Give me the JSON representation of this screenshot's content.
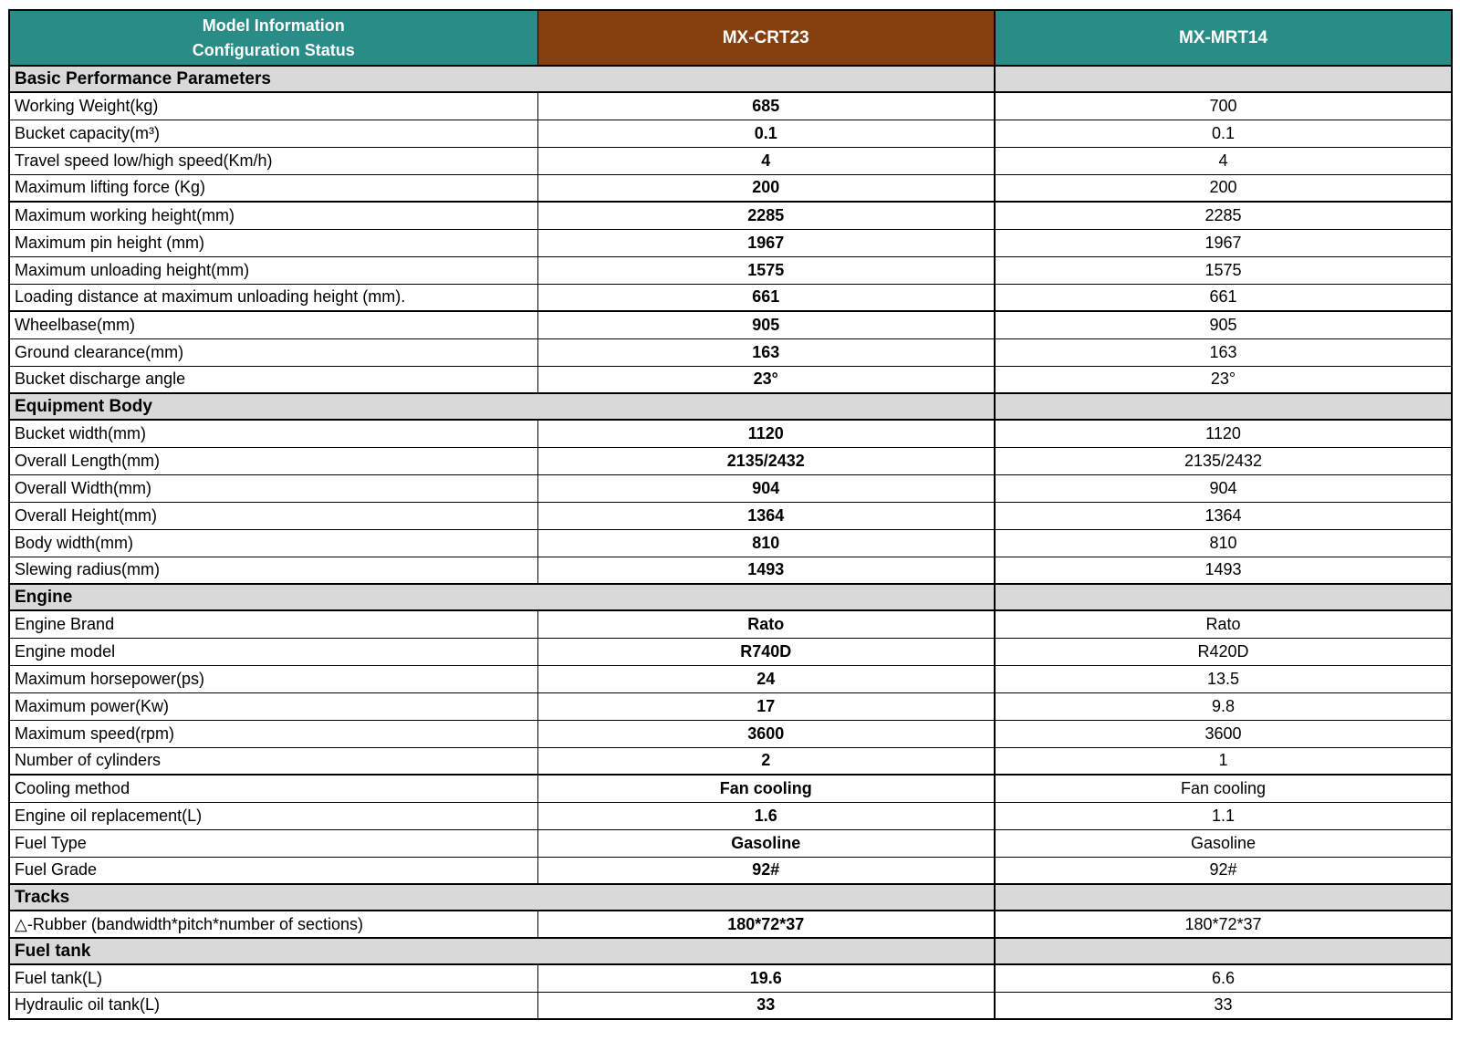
{
  "header": {
    "model_col_line1": "Model Information",
    "model_col_line2": "Configuration Status",
    "crt23_col": "MX-CRT23",
    "mrt14_col": "MX-MRT14"
  },
  "colors": {
    "teal": "#2a8c87",
    "brown": "#86400f",
    "section_bg": "#d9d9d9",
    "value_red": "#ff0000",
    "border": "#000000"
  },
  "sections": [
    {
      "title": "Basic Performance Parameters",
      "rows": [
        {
          "label": "Working Weight(kg)",
          "crt23": "685",
          "mrt14": "700"
        },
        {
          "label": "Bucket capacity(m³)",
          "crt23": "0.1",
          "mrt14": "0.1"
        },
        {
          "label": "Travel speed low/high speed(Km/h)",
          "crt23": "4",
          "mrt14": "4"
        },
        {
          "label": "Maximum lifting force (Kg)",
          "crt23": "200",
          "mrt14": "200",
          "group_end": true
        },
        {
          "label": "Maximum working height(mm)",
          "crt23": "2285",
          "mrt14": "2285"
        },
        {
          "label": "Maximum pin height (mm)",
          "crt23": "1967",
          "mrt14": "1967"
        },
        {
          "label": "Maximum unloading height(mm)",
          "crt23": "1575",
          "mrt14": "1575"
        },
        {
          "label": "Loading distance at maximum unloading height (mm).",
          "crt23": "661",
          "mrt14": "661",
          "group_end": true
        },
        {
          "label": "Wheelbase(mm)",
          "crt23": "905",
          "mrt14": "905"
        },
        {
          "label": "Ground clearance(mm)",
          "crt23": "163",
          "mrt14": "163"
        },
        {
          "label": "Bucket discharge angle",
          "crt23": "23°",
          "mrt14": "23°"
        }
      ]
    },
    {
      "title": "Equipment Body",
      "rows": [
        {
          "label": "Bucket width(mm)",
          "crt23": "1120",
          "mrt14": "1120"
        },
        {
          "label": "Overall Length(mm)",
          "crt23": "2135/2432",
          "mrt14": "2135/2432"
        },
        {
          "label": "Overall Width(mm)",
          "crt23": "904",
          "mrt14": "904"
        },
        {
          "label": "Overall Height(mm)",
          "crt23": "1364",
          "mrt14": "1364"
        },
        {
          "label": "Body width(mm)",
          "crt23": "810",
          "mrt14": "810"
        },
        {
          "label": "Slewing radius(mm)",
          "crt23": "1493",
          "mrt14": "1493"
        }
      ]
    },
    {
      "title": "Engine",
      "rows": [
        {
          "label": "Engine Brand",
          "crt23": "Rato",
          "mrt14": "Rato"
        },
        {
          "label": "Engine model",
          "crt23": "R740D",
          "mrt14": "R420D"
        },
        {
          "label": "Maximum horsepower(ps)",
          "crt23": "24",
          "mrt14": "13.5"
        },
        {
          "label": "Maximum power(Kw)",
          "crt23": "17",
          "mrt14": "9.8"
        },
        {
          "label": "Maximum speed(rpm)",
          "crt23": "3600",
          "mrt14": "3600"
        },
        {
          "label": "Number of cylinders",
          "crt23": "2",
          "mrt14": "1",
          "group_end": true
        },
        {
          "label": "Cooling method",
          "crt23": "Fan cooling",
          "mrt14": "Fan cooling"
        },
        {
          "label": "Engine oil replacement(L)",
          "crt23": "1.6",
          "mrt14": "1.1"
        },
        {
          "label": "Fuel Type",
          "crt23": "Gasoline",
          "mrt14": "Gasoline"
        },
        {
          "label": "Fuel Grade",
          "crt23": "92#",
          "mrt14": "92#"
        }
      ]
    },
    {
      "title": "Tracks",
      "rows": [
        {
          "label": "△-Rubber (bandwidth*pitch*number of sections)",
          "crt23": "180*72*37",
          "mrt14": "180*72*37"
        }
      ]
    },
    {
      "title": "Fuel tank",
      "rows": [
        {
          "label": "Fuel tank(L)",
          "crt23": "19.6",
          "mrt14": "6.6"
        },
        {
          "label": "Hydraulic oil tank(L)",
          "crt23": "33",
          "mrt14": "33"
        }
      ]
    }
  ]
}
